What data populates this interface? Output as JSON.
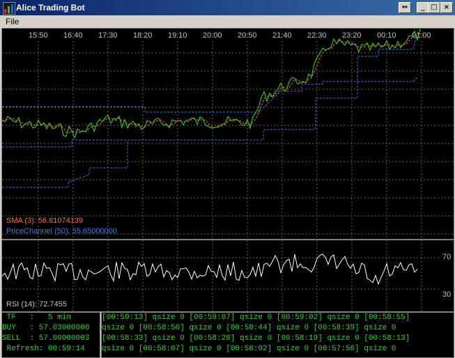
{
  "window": {
    "title": "Alice Trading Bot",
    "icon": "chart-icon",
    "controls": [
      "restore",
      "minimize",
      "maximize",
      "close"
    ]
  },
  "menu": {
    "items": [
      "File"
    ]
  },
  "chart": {
    "time_labels": [
      "15:50",
      "16:40",
      "17:30",
      "18:20",
      "19:10",
      "20:00",
      "20:50",
      "21:40",
      "22:30",
      "23:20",
      "00:10",
      "01:00"
    ],
    "colors": {
      "price": "#22dd22",
      "sma": "#ff6a3a",
      "channel": "#3a7ad8",
      "grid": "#666666",
      "axis_text": "#c0c0c0"
    },
    "legend": {
      "sma": "SMA (3): 56.81074139",
      "price_channel": "PriceChannel (50): 55.65000000"
    }
  },
  "rsi": {
    "label": "RSI (14): 72.7455",
    "upper": "70",
    "lower": "30",
    "color": "#ffffff"
  },
  "status": {
    "tf": " TF   :   5 min",
    "buy": "BUY   : 57.03000000",
    "sell": "SELL  : 57.00000003",
    "refresh": " Refresh: 00:59:14"
  },
  "log": {
    "lines": [
      "[00:59:13] qsize 0 [00:59:07] qsize 0 [00:59:02] qsize 0 [00:58:55]",
      "qsize 0 [00:58:50] qsize 0 [00:58:44] qsize 0 [00:58:39] qsize 0",
      "[00:58:33] qsize 0 [00:58:26] qsize 0 [00:58:19] qsize 0 [00:58:13]",
      "qsize 0 [00:58:07] qsize 0 [00:58:02] qsize 0 [00:57:56] qsize 0"
    ]
  }
}
